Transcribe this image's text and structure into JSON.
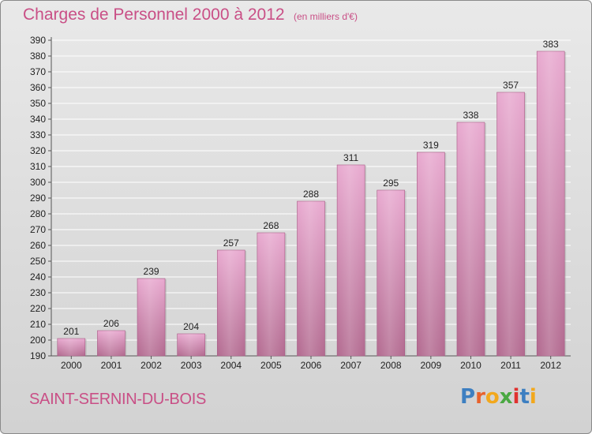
{
  "header": {
    "title": "Charges de Personnel 2000 à 2012",
    "subtitle": "(en milliers d'€)"
  },
  "footer": {
    "commune": "SAINT-SERNIN-DU-BOIS",
    "logo_text": "Proxiti",
    "logo_colors": [
      "#3d7fc1",
      "#e8622c",
      "#f2a81d",
      "#4aa842",
      "#e0312f",
      "#3d7fc1",
      "#f2a81d"
    ]
  },
  "colors": {
    "bar_top": "#e8a8cf",
    "bar_bottom": "#b2698f",
    "axis_text": "#222222",
    "grid": "#ffffff"
  },
  "chart_data": {
    "type": "bar",
    "categories": [
      "2000",
      "2001",
      "2002",
      "2003",
      "2004",
      "2005",
      "2006",
      "2007",
      "2008",
      "2009",
      "2010",
      "2011",
      "2012"
    ],
    "values": [
      201,
      206,
      239,
      204,
      257,
      268,
      288,
      311,
      295,
      319,
      338,
      357,
      383
    ],
    "ylim": [
      190,
      390
    ],
    "ytick_step": 10,
    "grid": true,
    "legend": "none"
  }
}
